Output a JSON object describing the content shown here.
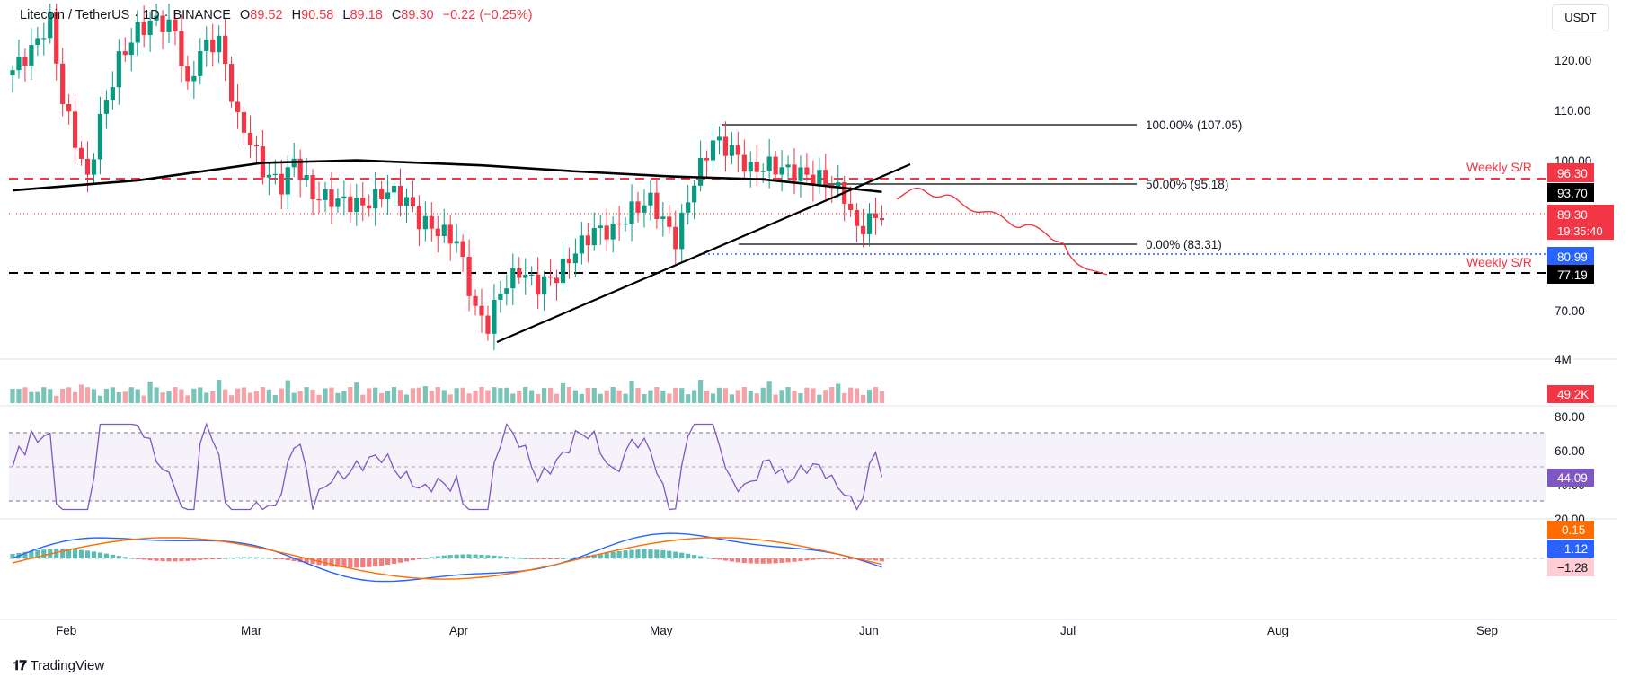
{
  "header": {
    "symbol": "Litecoin / TetherUS",
    "interval": "1D",
    "exchange": "BINANCE",
    "open_label": "O",
    "open": "89.52",
    "high_label": "H",
    "high": "90.58",
    "low_label": "L",
    "low": "89.18",
    "close_label": "C",
    "close": "89.30",
    "change": "−0.22 (−0.25%)"
  },
  "currency": "USDT",
  "branding": "TradingView",
  "colors": {
    "up": "#089981",
    "down": "#f23645",
    "ma": "#000000",
    "rsi": "#7e57c2",
    "macd": "#2962ff",
    "signal": "#ff6d00",
    "resistance": "#f23645",
    "support": "#000000",
    "level_blue": "#2962ff"
  },
  "price_axis_ticks": [
    "120.00",
    "110.00",
    "100.00",
    "70.00"
  ],
  "volume_axis_tick": "4M",
  "rsi_axis_ticks": [
    "80.00",
    "60.00",
    "40.00",
    "20.00"
  ],
  "time_axis": [
    "Feb",
    "Mar",
    "Apr",
    "May",
    "Jun",
    "Jul",
    "Aug",
    "Sep"
  ],
  "annotations": {
    "fib_100": "100.00% (107.05)",
    "fib_50": "50.00% (95.18)",
    "fib_0": "0.00% (83.31)",
    "weekly_sr_upper": "Weekly S/R",
    "weekly_sr_lower": "Weekly S/R"
  },
  "price_labels": {
    "resistance": "96.30",
    "ma": "93.70",
    "last": "89.30",
    "countdown": "19:35:40",
    "blue_level": "80.99",
    "support": "77.19",
    "volume": "49.2K",
    "rsi": "44.09",
    "macd_hist": "0.15",
    "macd": "−1.12",
    "signal": "−1.28"
  },
  "chart_data": [
    {
      "type": "candlestick",
      "title": "Litecoin / TetherUS · 1D · BINANCE",
      "y_unit": "USDT",
      "ylim": [
        62,
        127
      ],
      "x": [
        "Jan 26",
        "Sep 10"
      ],
      "moving_average_200_last": 93.7,
      "horizontal_levels": [
        {
          "label": "Weekly S/R",
          "value": 96.3,
          "style": "dashed",
          "color": "#f23645"
        },
        {
          "label": "Weekly S/R",
          "value": 77.19,
          "style": "dashed",
          "color": "#000000"
        },
        {
          "value": 80.99,
          "style": "dotted",
          "color": "#2962ff"
        }
      ],
      "fibonacci": [
        {
          "label": "100.00% (107.05)",
          "value": 107.05
        },
        {
          "label": "50.00% (95.18)",
          "value": 95.18
        },
        {
          "label": "0.00% (83.31)",
          "value": 83.31
        }
      ],
      "trendline": {
        "from": {
          "date": "Apr 7",
          "value": 63.5
        },
        "to": {
          "date": "Jun 5",
          "value": 98.8
        }
      },
      "last_close": 89.3
    },
    {
      "type": "bar",
      "title": "Volume",
      "last": "49.2K"
    },
    {
      "type": "line",
      "title": "RSI",
      "last": 44.09,
      "bands": [
        30,
        50,
        70
      ],
      "ylim": [
        20,
        80
      ]
    },
    {
      "type": "bar",
      "title": "MACD",
      "macd": -1.12,
      "signal": -1.28,
      "histogram": 0.15
    }
  ]
}
